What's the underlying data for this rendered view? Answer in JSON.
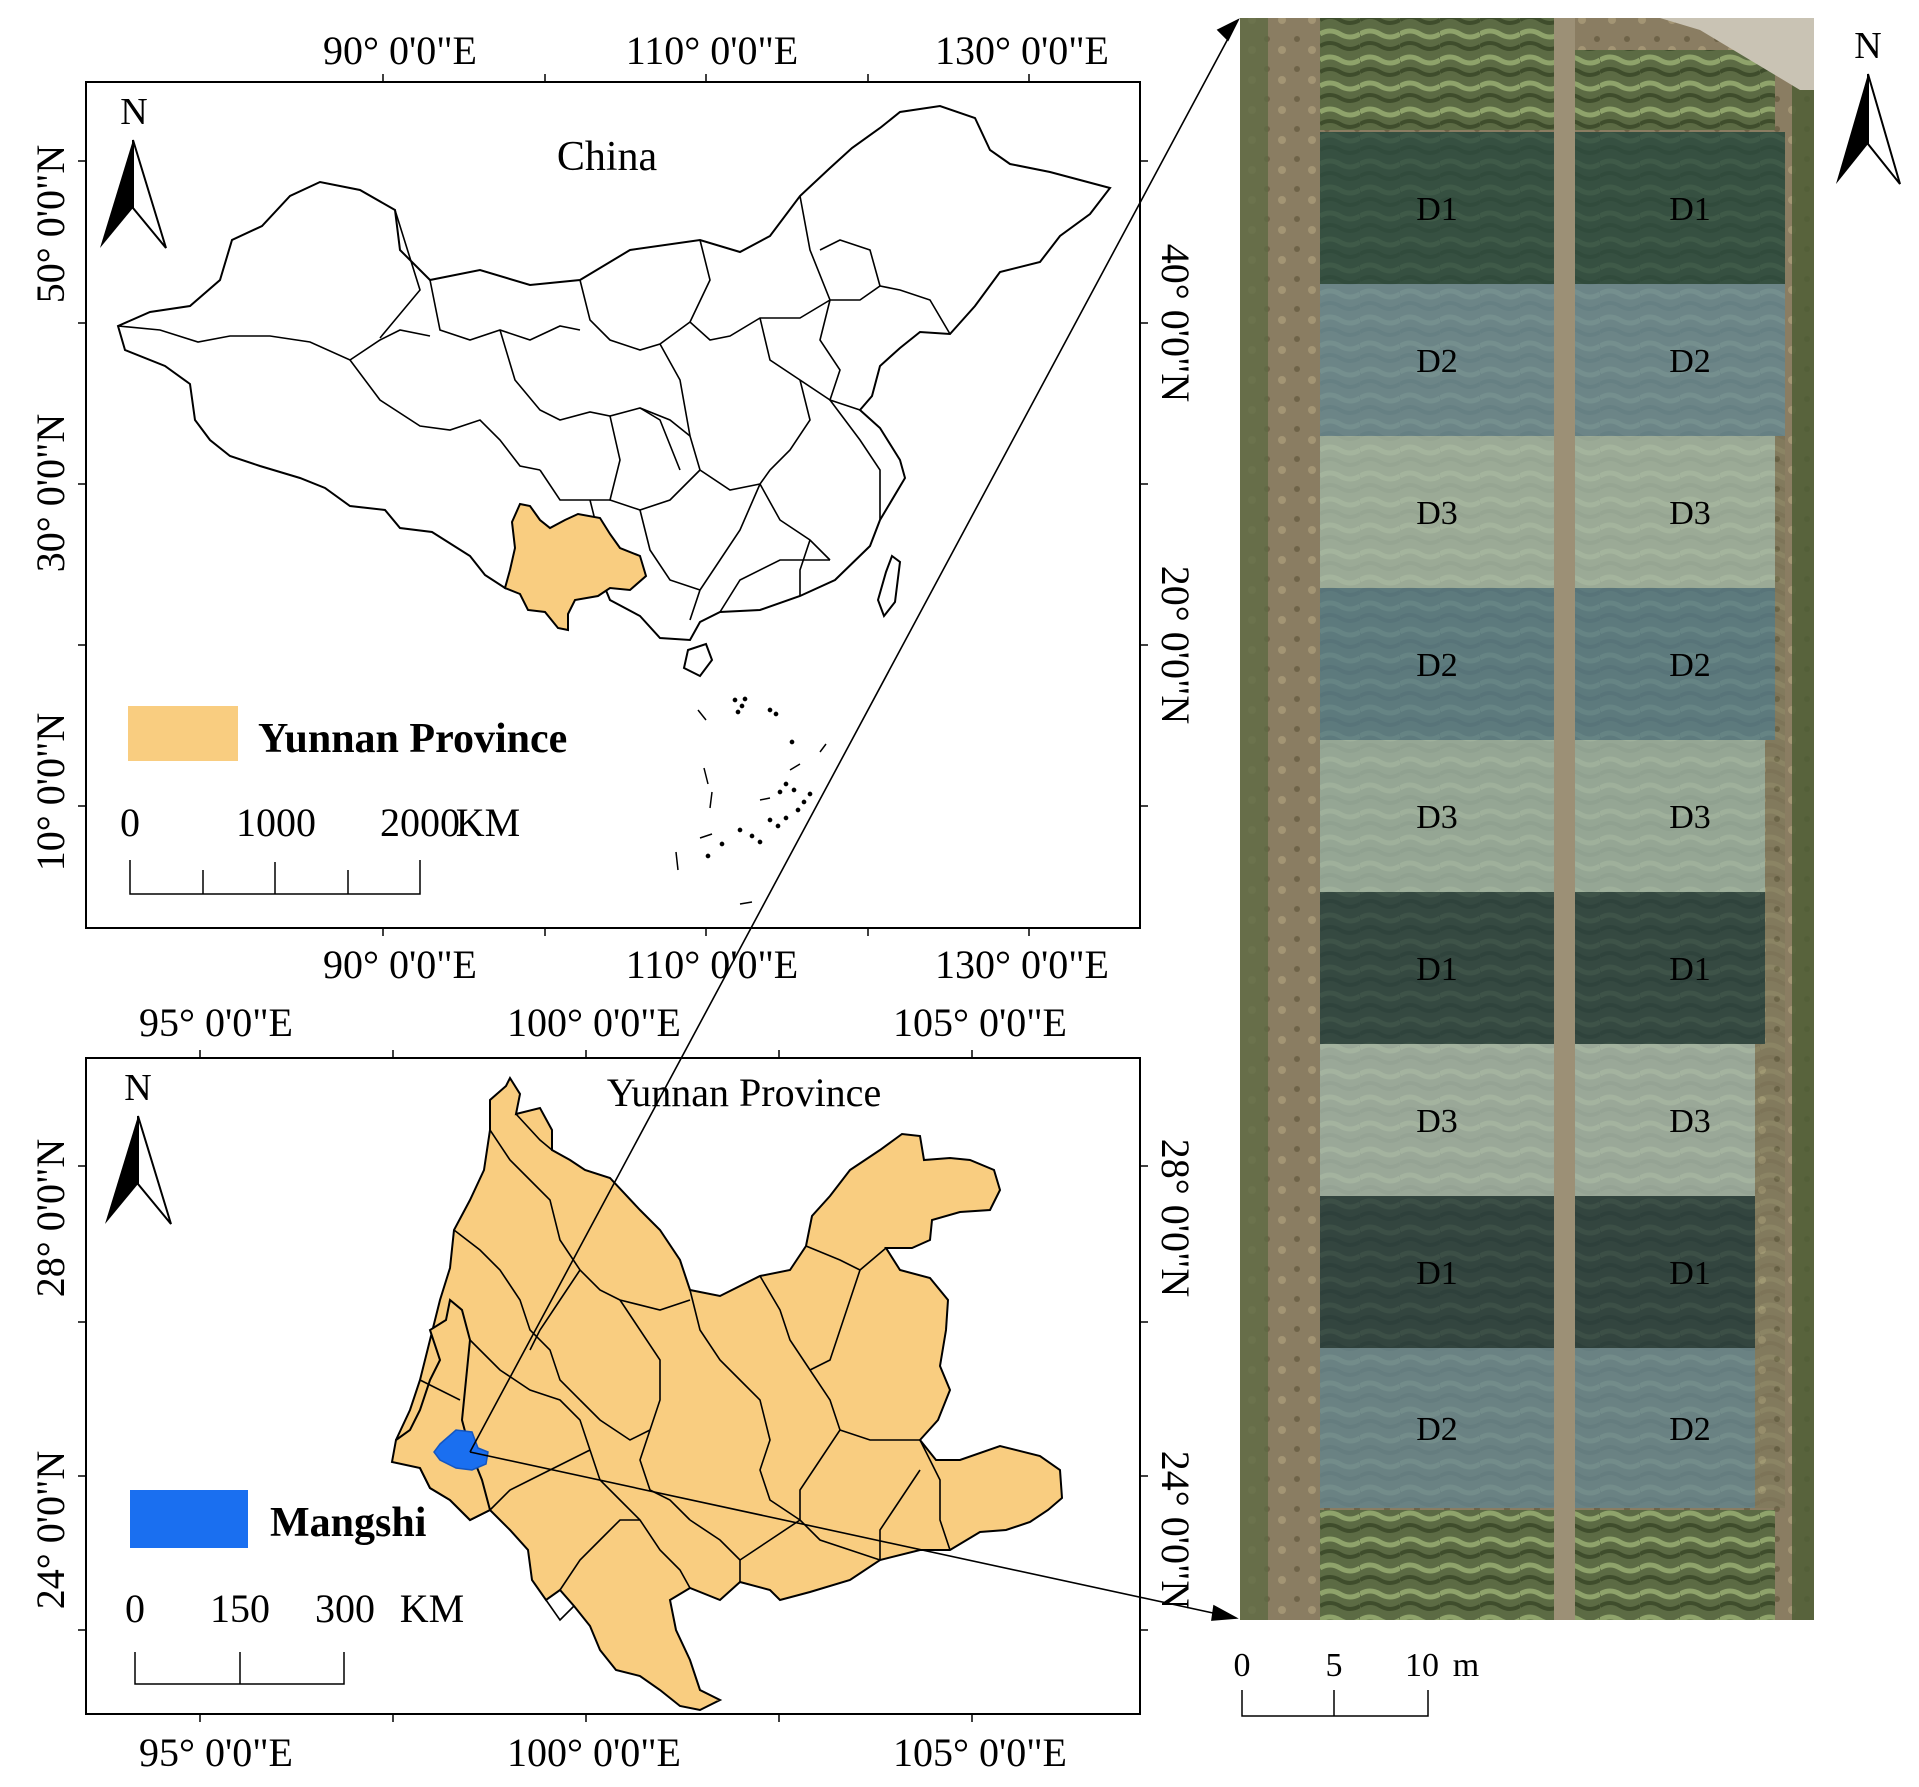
{
  "china_map": {
    "title": "China",
    "north_label": "N",
    "top_ticks": [
      "90° 0'0\"E",
      "110° 0'0\"E",
      "130° 0'0\"E"
    ],
    "bottom_ticks": [
      "90° 0'0\"E",
      "110° 0'0\"E",
      "130° 0'0\"E"
    ],
    "left_ticks": [
      "50° 0'0\"N",
      "30° 0'0\"N",
      "10° 0'0\"N"
    ],
    "right_ticks": [
      "40° 0'0\"N",
      "20° 0'0\"N"
    ],
    "legend_label": "Yunnan Province",
    "legend_color": "#f9cd80",
    "scale_labels": [
      "0",
      "1000",
      "2000",
      "KM"
    ]
  },
  "yunnan_map": {
    "title": "Yunnan Province",
    "north_label": "N",
    "top_ticks": [
      "95° 0'0\"E",
      "100° 0'0\"E",
      "105° 0'0\"E"
    ],
    "bottom_ticks": [
      "95° 0'0\"E",
      "100° 0'0\"E",
      "105° 0'0\"E"
    ],
    "left_ticks": [
      "28° 0'0\"N",
      "24° 0'0\"N"
    ],
    "right_ticks": [
      "28° 0'0\"N",
      "24° 0'0\"N"
    ],
    "legend_label": "Mangshi",
    "legend_color": "#1a6ff0",
    "scale_labels": [
      "0",
      "150",
      "300",
      "KM"
    ]
  },
  "field_image": {
    "north_label": "N",
    "plots_left": [
      "D1",
      "D2",
      "D3",
      "D2",
      "D3",
      "D1",
      "D3",
      "D1",
      "D2"
    ],
    "plots_right": [
      "D1",
      "D2",
      "D3",
      "D2",
      "D3",
      "D1",
      "D3",
      "D1",
      "D2"
    ],
    "scale_labels": [
      "0",
      "5",
      "10",
      "m"
    ]
  }
}
